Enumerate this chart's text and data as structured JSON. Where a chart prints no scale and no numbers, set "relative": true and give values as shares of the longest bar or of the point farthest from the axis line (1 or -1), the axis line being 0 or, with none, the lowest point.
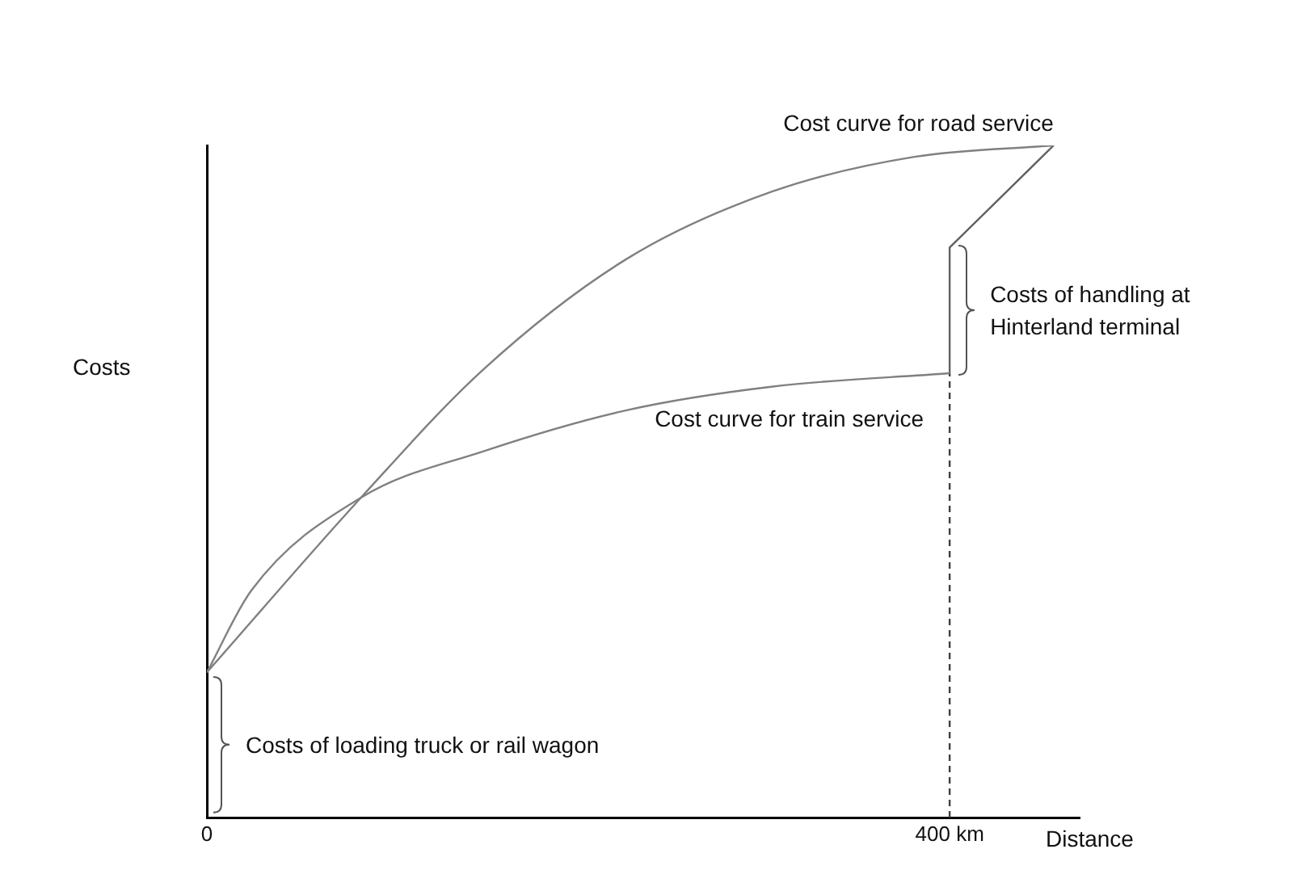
{
  "chart_data": {
    "type": "line",
    "relative": true,
    "xlabel": "Distance",
    "ylabel": "Costs",
    "xlim": [
      0,
      470
    ],
    "xticks": [
      0,
      {
        "value": 400,
        "label": "400 km"
      }
    ],
    "tick_labels": "x",
    "grid": false,
    "legend": false,
    "marker": "none",
    "line_style": "solid",
    "series": [
      {
        "name": "Cost curve for road service",
        "color": "#808080",
        "x": [
          0,
          83,
          149,
          226,
          304,
          381,
          456
        ],
        "values": [
          0.216,
          0.476,
          0.667,
          0.831,
          0.931,
          0.983,
          1
        ]
      },
      {
        "name": "Cost curve for train service",
        "color": "#808080",
        "x": [
          0,
          24,
          83,
          149,
          226,
          304,
          400
        ],
        "values": [
          0.216,
          0.338,
          0.476,
          0.545,
          0.606,
          0.641,
          0.661
        ]
      },
      {
        "color": "#606060",
        "x": [
          400,
          400,
          456
        ],
        "values": [
          0.661,
          0.848,
          1
        ]
      },
      {
        "color": "#404040",
        "line_style": "dashed",
        "x": [
          400,
          400
        ],
        "values": [
          0,
          0.661
        ]
      }
    ],
    "annotations": [
      "Costs of loading truck or rail wagon",
      {
        "text": "Costs of handling at Hinterland terminal",
        "x": 400,
        "y": 0.755
      }
    ]
  }
}
